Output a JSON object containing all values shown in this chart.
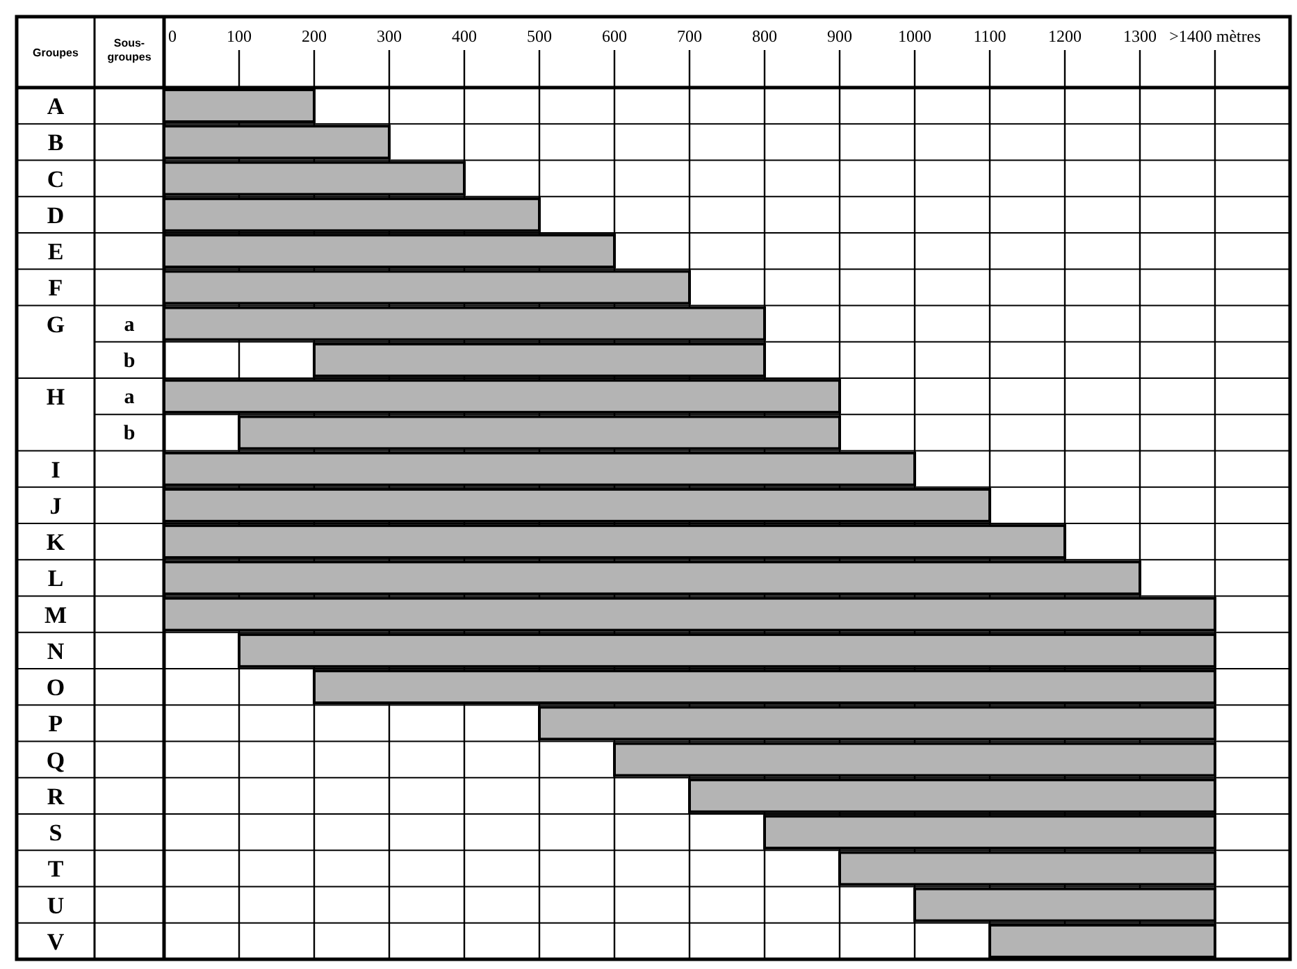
{
  "chart_data": {
    "type": "bar",
    "orientation": "horizontal",
    "ylabel": "Groupes",
    "y2label": "Sous-groupes",
    "categories": [
      "A",
      "B",
      "C",
      "D",
      "E",
      "F",
      "G",
      null,
      "H",
      null,
      "I",
      "J",
      "K",
      "L",
      "M",
      "N",
      "O",
      "P",
      "Q",
      "R",
      "S",
      "T",
      "U",
      "V"
    ],
    "y2_categories": [
      null,
      null,
      null,
      null,
      null,
      null,
      "a",
      "b",
      "a",
      "b",
      null,
      null,
      null,
      null,
      null,
      null,
      null,
      null,
      null,
      null,
      null,
      null,
      null,
      null
    ],
    "base": [
      0,
      0,
      0,
      0,
      0,
      0,
      0,
      200,
      0,
      100,
      0,
      0,
      0,
      0,
      0,
      100,
      200,
      500,
      600,
      700,
      800,
      900,
      1000,
      1100
    ],
    "values": [
      200,
      300,
      400,
      500,
      600,
      700,
      800,
      600,
      900,
      800,
      1000,
      1100,
      1200,
      1300,
      1400,
      1300,
      1200,
      900,
      800,
      700,
      600,
      500,
      400,
      300
    ],
    "color": "#b4b4b4",
    "xlim": [
      0,
      1500
    ],
    "xticks": [
      0,
      100,
      200,
      300,
      400,
      500,
      600,
      700,
      800,
      900,
      1000,
      1100,
      1200,
      1300,
      {
        "value": 1400,
        "label": ">1400 mètres"
      }
    ],
    "grid": true
  }
}
